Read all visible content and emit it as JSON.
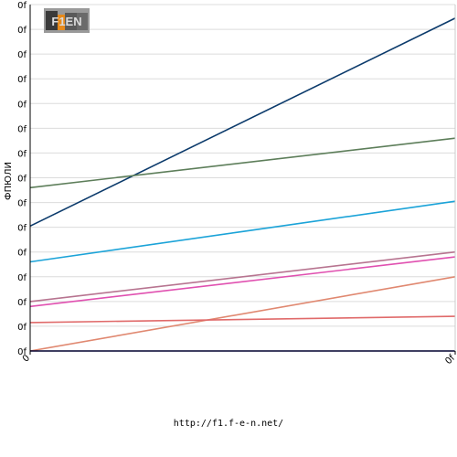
{
  "logo": {
    "text": "F1EN"
  },
  "footer": {
    "url": "http://f1.f-e-n.net/"
  },
  "chart_data": {
    "type": "line",
    "title": "",
    "xlabel": "",
    "ylabel": "ФПЮЛИ",
    "x": [
      0,
      1
    ],
    "x_tick_labels": [
      "0",
      "0f"
    ],
    "y_tick_labels": [
      "0f",
      "0f",
      "0f",
      "0f",
      "0f",
      "0f",
      "0f",
      "0f",
      "0f",
      "0f",
      "0f",
      "0f",
      "0f",
      "0f",
      "0f"
    ],
    "ylim": [
      0,
      14
    ],
    "grid": true,
    "legend": "none",
    "series": [
      {
        "color": "#0b3a6b",
        "values": [
          5.05,
          13.45
        ]
      },
      {
        "color": "#5d7e5a",
        "values": [
          6.6,
          8.6
        ]
      },
      {
        "color": "#1ba3d8",
        "values": [
          3.6,
          6.05
        ]
      },
      {
        "color": "#b77490",
        "values": [
          2.0,
          4.0
        ]
      },
      {
        "color": "#e050b0",
        "values": [
          1.8,
          3.8
        ]
      },
      {
        "color": "#e08870",
        "values": [
          0.0,
          3.0
        ]
      },
      {
        "color": "#e06a6a",
        "values": [
          1.15,
          1.4
        ]
      },
      {
        "color": "#00008b",
        "values": [
          0.0,
          0.0
        ]
      }
    ]
  }
}
